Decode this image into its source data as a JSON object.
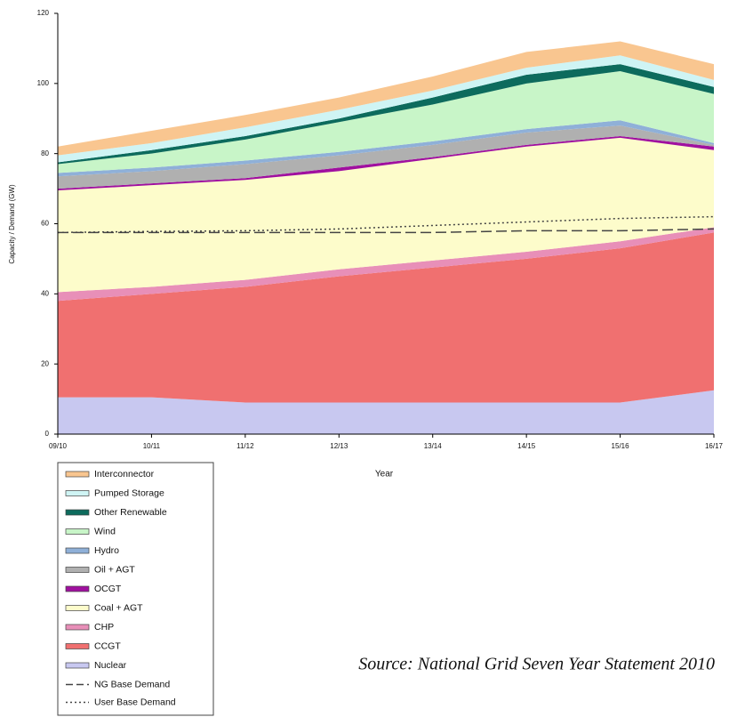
{
  "chart_data": {
    "type": "stacked_area",
    "x_label": "Year",
    "y_label": "Capacity / Demand (GW)",
    "source": "Source: National Grid Seven Year Statement 2010",
    "categories": [
      "09/10",
      "10/11",
      "11/12",
      "12/13",
      "13/14",
      "14/15",
      "15/16",
      "16/17"
    ],
    "ylim": [
      0,
      120
    ],
    "yticks": [
      0,
      20,
      40,
      60,
      80,
      100,
      120
    ],
    "grid": false,
    "series": [
      {
        "name": "Nuclear",
        "color": "#c8c8f0",
        "values": [
          10.5,
          10.5,
          9,
          9,
          9,
          9,
          9,
          12.5
        ]
      },
      {
        "name": "CCGT",
        "color": "#f07070",
        "values": [
          27.5,
          29.5,
          33,
          36,
          38.5,
          41,
          44,
          45
        ]
      },
      {
        "name": "CHP",
        "color": "#e88fb8",
        "values": [
          2.5,
          2,
          2,
          2,
          2,
          2,
          2,
          1.5
        ]
      },
      {
        "name": "Coal + AGT",
        "color": "#fdfccb",
        "values": [
          29,
          29,
          28.5,
          28,
          29,
          30,
          29.5,
          22
        ]
      },
      {
        "name": "OCGT",
        "color": "#a0109f",
        "values": [
          0.5,
          0.5,
          0.5,
          1,
          0.5,
          0.5,
          0.5,
          1
        ]
      },
      {
        "name": "Oil + AGT",
        "color": "#b0b0b0",
        "values": [
          3.5,
          3.5,
          4,
          3.5,
          3.5,
          3.5,
          3,
          0.5
        ]
      },
      {
        "name": "Hydro",
        "color": "#8fb0d8",
        "values": [
          1,
          1,
          1,
          1,
          1,
          1,
          1.5,
          0.5
        ]
      },
      {
        "name": "Wind",
        "color": "#c8f5c8",
        "values": [
          2.5,
          4,
          6,
          8.5,
          10.5,
          13,
          14,
          14
        ]
      },
      {
        "name": "Other Renewable",
        "color": "#0d6b5d",
        "values": [
          0.5,
          1,
          1,
          1,
          2,
          2.5,
          2,
          2
        ]
      },
      {
        "name": "Pumped Storage",
        "color": "#cff4f4",
        "values": [
          2,
          2,
          2.5,
          2.5,
          2,
          2,
          2.5,
          2
        ]
      },
      {
        "name": "Interconnector",
        "color": "#f9c690",
        "values": [
          2.5,
          3.5,
          3.5,
          3.5,
          4,
          4.5,
          4,
          4.5
        ]
      }
    ],
    "lines": [
      {
        "name": "NG Base Demand",
        "color": "#444444",
        "dash": "dashed",
        "values": [
          57.5,
          57.5,
          57.5,
          57.5,
          57.5,
          58,
          58,
          58.5
        ]
      },
      {
        "name": "User Base Demand",
        "color": "#444444",
        "dash": "dotted",
        "values": [
          57.5,
          57.8,
          58,
          58.5,
          59.5,
          60.5,
          61.5,
          62
        ]
      }
    ]
  }
}
